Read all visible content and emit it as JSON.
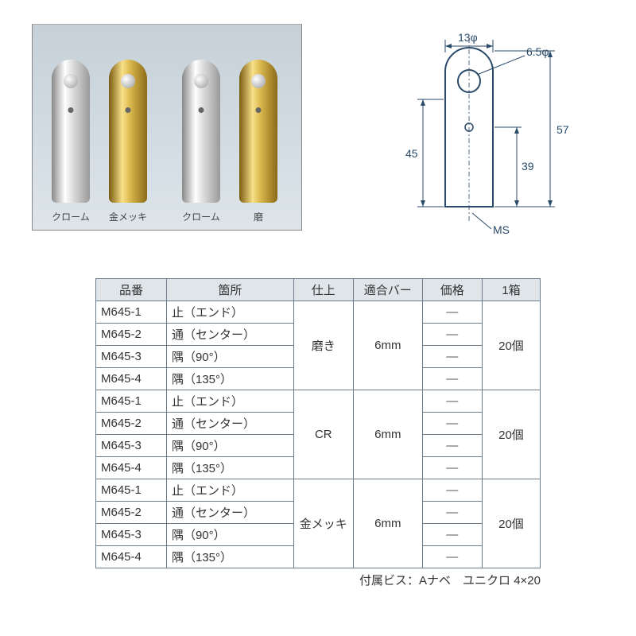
{
  "photo": {
    "labels": [
      "クローム",
      "金メッキ",
      "クローム",
      "磨"
    ],
    "background": "#d8e0e6",
    "cylinder_colors": [
      "silver",
      "gold",
      "silver",
      "gold"
    ]
  },
  "diagram": {
    "dim_top_width": "13φ",
    "dim_hole": "6.5φ",
    "dim_body_height": "45",
    "dim_total_height": "57",
    "dim_screw_height": "39",
    "dim_screw": "MS",
    "stroke_color": "#2a4a6a"
  },
  "table": {
    "headers": [
      "品番",
      "箇所",
      "仕上",
      "適合バー",
      "価格",
      "1箱"
    ],
    "groups": [
      {
        "finish": "磨き",
        "bar": "6mm",
        "box": "20個",
        "rows": [
          {
            "part": "M645-1",
            "loc": "止（エンド）",
            "price": "—"
          },
          {
            "part": "M645-2",
            "loc": "通（センター）",
            "price": "—"
          },
          {
            "part": "M645-3",
            "loc": "隅（90°）",
            "price": "—"
          },
          {
            "part": "M645-4",
            "loc": "隅（135°）",
            "price": "—"
          }
        ]
      },
      {
        "finish": "CR",
        "bar": "6mm",
        "box": "20個",
        "rows": [
          {
            "part": "M645-1",
            "loc": "止（エンド）",
            "price": "—"
          },
          {
            "part": "M645-2",
            "loc": "通（センター）",
            "price": "—"
          },
          {
            "part": "M645-3",
            "loc": "隅（90°）",
            "price": "—"
          },
          {
            "part": "M645-4",
            "loc": "隅（135°）",
            "price": "—"
          }
        ]
      },
      {
        "finish": "金メッキ",
        "bar": "6mm",
        "box": "20個",
        "rows": [
          {
            "part": "M645-1",
            "loc": "止（エンド）",
            "price": "—"
          },
          {
            "part": "M645-2",
            "loc": "通（センター）",
            "price": "—"
          },
          {
            "part": "M645-3",
            "loc": "隅（90°）",
            "price": "—"
          },
          {
            "part": "M645-4",
            "loc": "隅（135°）",
            "price": "—"
          }
        ]
      }
    ],
    "footnote": "付属ビス：Aナベ　ユニクロ 4×20",
    "border_color": "#6a7a88",
    "header_bg": "#e0e5ea"
  }
}
